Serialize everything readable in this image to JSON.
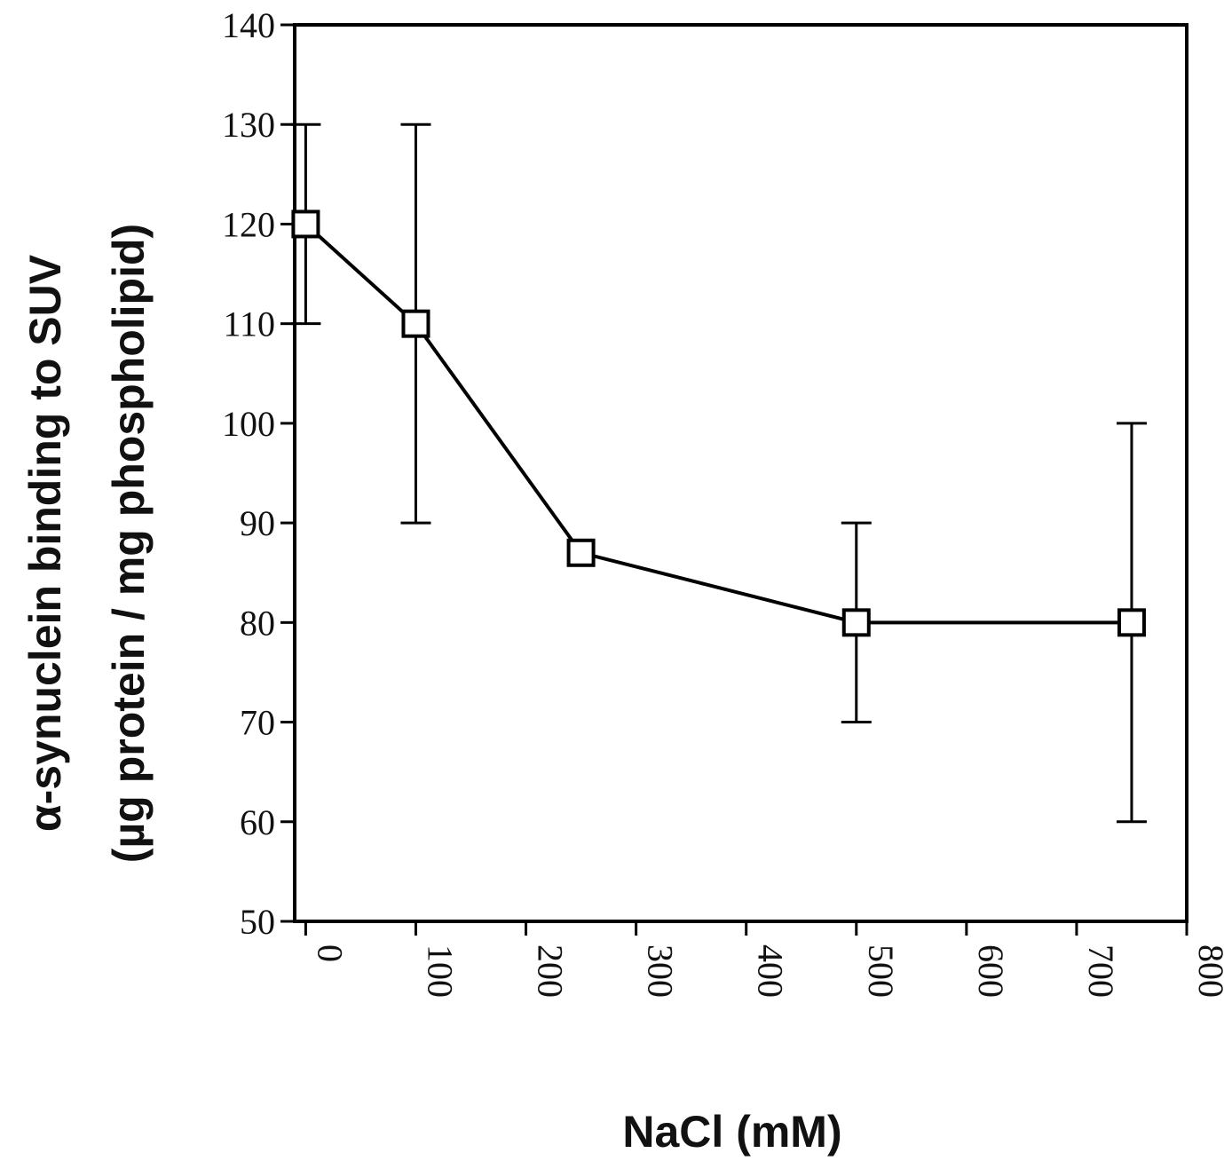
{
  "chart_data": {
    "type": "line",
    "xlabel": "NaCl (mM)",
    "ylabel_line1": "α-synuclein binding to SUV",
    "ylabel_line2": "(µg protein / mg phospholipid)",
    "xlim": [
      -10,
      800
    ],
    "ylim": [
      50,
      140
    ],
    "xticks": [
      0,
      100,
      200,
      300,
      400,
      500,
      600,
      700,
      800
    ],
    "yticks": [
      50,
      60,
      70,
      80,
      90,
      100,
      110,
      120,
      130,
      140
    ],
    "grid": false,
    "marker": "open-square",
    "series": [
      {
        "x": [
          0,
          100,
          250,
          500,
          750
        ],
        "y": [
          120,
          110,
          87,
          80,
          80
        ],
        "err_low": [
          110,
          90,
          87,
          70,
          60
        ],
        "err_high": [
          130,
          130,
          87,
          90,
          100
        ]
      }
    ],
    "colors": {
      "line": "#000000",
      "marker_fill": "#ffffff",
      "axis": "#000000"
    }
  }
}
